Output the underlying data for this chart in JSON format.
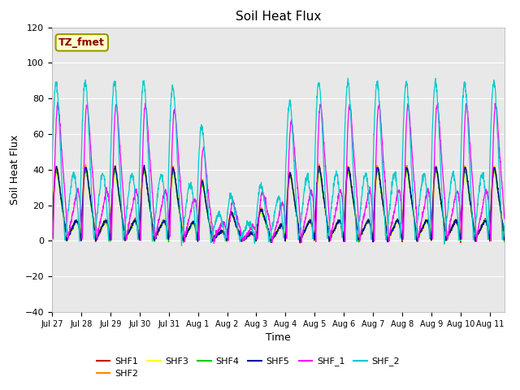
{
  "title": "Soil Heat Flux",
  "xlabel": "Time",
  "ylabel": "Soil Heat Flux",
  "ylim": [
    -40,
    120
  ],
  "fig_bg_color": "#ffffff",
  "plot_bg_color": "#e8e8e8",
  "annotation_text": "TZ_fmet",
  "annotation_text_color": "#8b0000",
  "annotation_box_facecolor": "#ffffcc",
  "annotation_box_edgecolor": "#999900",
  "series": [
    {
      "name": "SHF1",
      "color": "#cc0000"
    },
    {
      "name": "SHF2",
      "color": "#ff8800"
    },
    {
      "name": "SHF3",
      "color": "#ffff00"
    },
    {
      "name": "SHF4",
      "color": "#00cc00"
    },
    {
      "name": "SHF5",
      "color": "#000099"
    },
    {
      "name": "SHF_1",
      "color": "#ff00ff"
    },
    {
      "name": "SHF_2",
      "color": "#00cccc"
    }
  ],
  "x_tick_labels": [
    "Jul 27",
    "Jul 28",
    "Jul 29",
    "Jul 30",
    "Jul 31",
    "Aug 1",
    "Aug 2",
    "Aug 3",
    "Aug 4",
    "Aug 5",
    "Aug 6",
    "Aug 7",
    "Aug 8",
    "Aug 9",
    "Aug 10",
    "Aug 11"
  ],
  "yticks": [
    -40,
    -20,
    0,
    20,
    40,
    60,
    80,
    100,
    120
  ],
  "num_days": 15,
  "points_per_day": 144,
  "seed": 12345
}
